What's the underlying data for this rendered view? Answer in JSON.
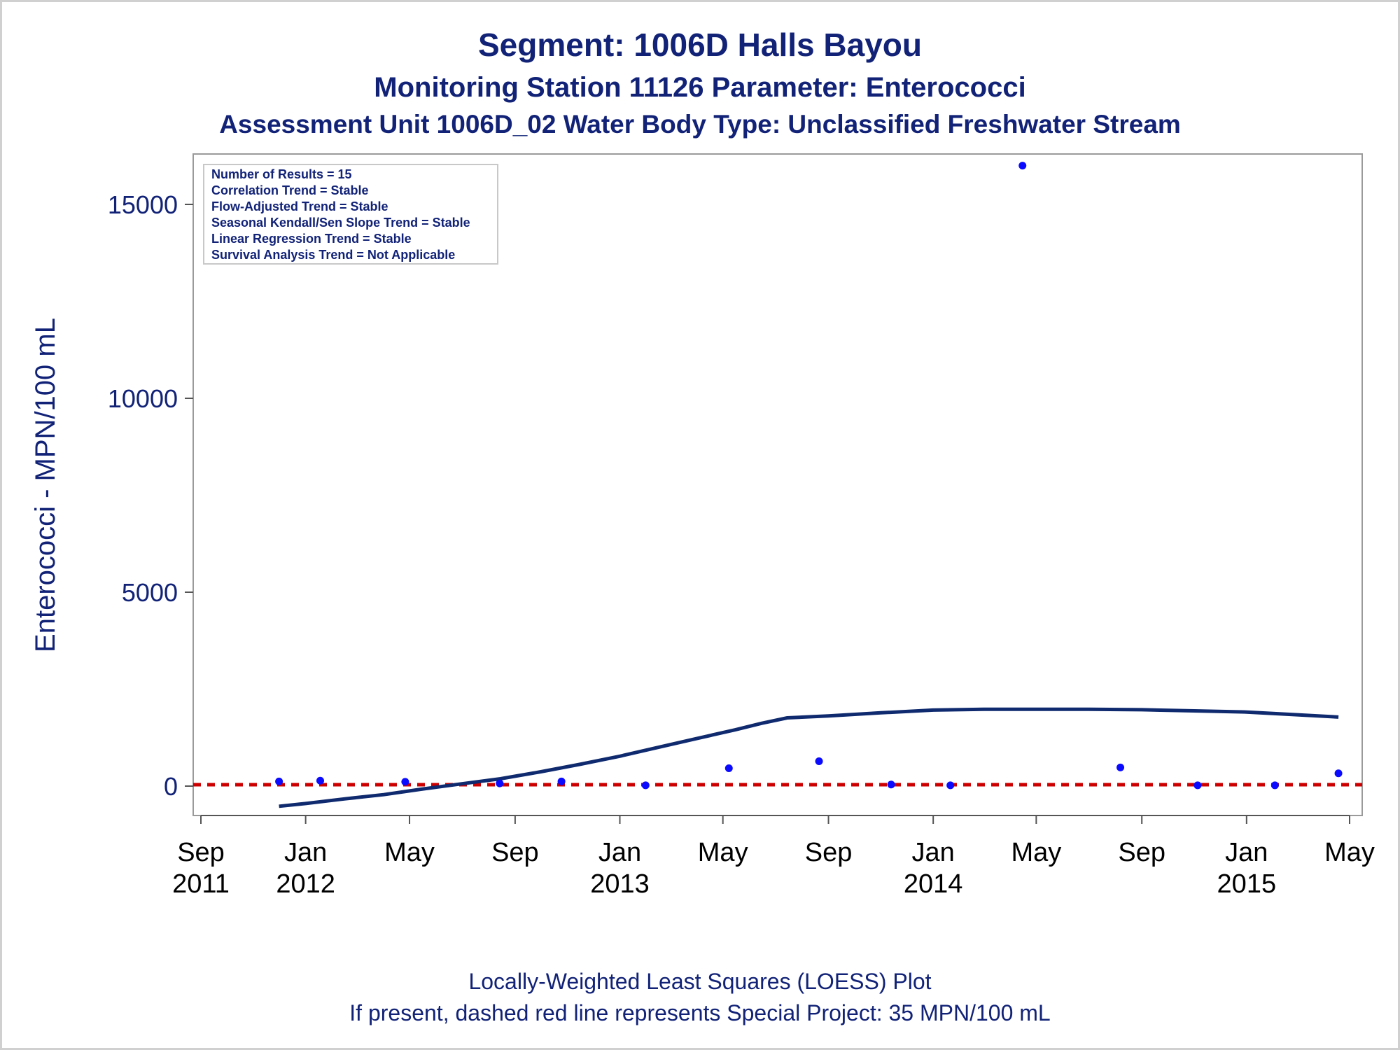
{
  "header": {
    "title": "Segment: 1006D  Halls Bayou",
    "subtitle1": "Monitoring Station 11126 Parameter: Enterococci",
    "subtitle2": "Assessment Unit 1006D_02   Water Body Type: Unclassified Freshwater Stream"
  },
  "legend": {
    "lines": [
      "Number of Results = 15",
      "Correlation Trend = Stable",
      "Flow-Adjusted Trend = Stable",
      "Seasonal Kendall/Sen Slope Trend = Stable",
      "Linear Regression Trend = Stable",
      "Survival Analysis Trend = Not Applicable"
    ]
  },
  "footer": {
    "line1": "Locally-Weighted Least Squares (LOESS) Plot",
    "line2": "If present, dashed red line represents Special Project: 35 MPN/100 mL"
  },
  "colors": {
    "points": "#0a0aff",
    "loess": "#0f2a6e",
    "reference": "#cc0000",
    "text": "#112277"
  },
  "chart_data": {
    "type": "scatter",
    "ylabel": "Enterococci - MPN/100 mL",
    "xlabel": "",
    "ylim": [
      -1000,
      16300
    ],
    "xlim": [
      "2011-09-01",
      "2015-05-01"
    ],
    "yticks": [
      0,
      5000,
      10000,
      15000
    ],
    "xticks": [
      {
        "date": "2011-09-01",
        "label": [
          "Sep",
          "2011"
        ]
      },
      {
        "date": "2012-01-01",
        "label": [
          "Jan",
          "2012"
        ]
      },
      {
        "date": "2012-05-01",
        "label": [
          "May",
          ""
        ]
      },
      {
        "date": "2012-09-01",
        "label": [
          "Sep",
          ""
        ]
      },
      {
        "date": "2013-01-01",
        "label": [
          "Jan",
          "2013"
        ]
      },
      {
        "date": "2013-05-01",
        "label": [
          "May",
          ""
        ]
      },
      {
        "date": "2013-09-01",
        "label": [
          "Sep",
          ""
        ]
      },
      {
        "date": "2014-01-01",
        "label": [
          "Jan",
          "2014"
        ]
      },
      {
        "date": "2014-05-01",
        "label": [
          "May",
          ""
        ]
      },
      {
        "date": "2014-09-01",
        "label": [
          "Sep",
          ""
        ]
      },
      {
        "date": "2015-01-01",
        "label": [
          "Jan",
          "2015"
        ]
      },
      {
        "date": "2015-05-01",
        "label": [
          "May",
          ""
        ]
      }
    ],
    "reference_line": {
      "name": "Special Project",
      "value": 35
    },
    "series": [
      {
        "kind": "points",
        "points": [
          {
            "x": "2011-12-01",
            "y": 120
          },
          {
            "x": "2012-01-18",
            "y": 140
          },
          {
            "x": "2012-04-26",
            "y": 110
          },
          {
            "x": "2012-08-14",
            "y": 70
          },
          {
            "x": "2012-10-25",
            "y": 120
          },
          {
            "x": "2013-01-31",
            "y": 20
          },
          {
            "x": "2013-05-08",
            "y": 460
          },
          {
            "x": "2013-08-21",
            "y": 640
          },
          {
            "x": "2013-11-13",
            "y": 40
          },
          {
            "x": "2014-01-21",
            "y": 20
          },
          {
            "x": "2014-04-15",
            "y": 16000
          },
          {
            "x": "2014-08-07",
            "y": 480
          },
          {
            "x": "2014-11-05",
            "y": 20
          },
          {
            "x": "2015-02-03",
            "y": 20
          },
          {
            "x": "2015-04-18",
            "y": 330
          }
        ]
      },
      {
        "kind": "loess",
        "points": [
          {
            "x": "2011-12-01",
            "y": -520
          },
          {
            "x": "2012-01-01",
            "y": -450
          },
          {
            "x": "2012-02-15",
            "y": -330
          },
          {
            "x": "2012-04-01",
            "y": -220
          },
          {
            "x": "2012-05-15",
            "y": -80
          },
          {
            "x": "2012-07-01",
            "y": 60
          },
          {
            "x": "2012-08-15",
            "y": 190
          },
          {
            "x": "2012-10-01",
            "y": 370
          },
          {
            "x": "2012-11-15",
            "y": 560
          },
          {
            "x": "2013-01-01",
            "y": 770
          },
          {
            "x": "2013-02-15",
            "y": 1000
          },
          {
            "x": "2013-04-01",
            "y": 1230
          },
          {
            "x": "2013-05-15",
            "y": 1450
          },
          {
            "x": "2013-06-15",
            "y": 1620
          },
          {
            "x": "2013-07-15",
            "y": 1760
          },
          {
            "x": "2013-09-01",
            "y": 1810
          },
          {
            "x": "2013-11-01",
            "y": 1890
          },
          {
            "x": "2014-01-01",
            "y": 1960
          },
          {
            "x": "2014-03-01",
            "y": 1980
          },
          {
            "x": "2014-05-01",
            "y": 1980
          },
          {
            "x": "2014-07-01",
            "y": 1980
          },
          {
            "x": "2014-09-01",
            "y": 1970
          },
          {
            "x": "2014-11-01",
            "y": 1940
          },
          {
            "x": "2015-01-01",
            "y": 1910
          },
          {
            "x": "2015-03-01",
            "y": 1840
          },
          {
            "x": "2015-04-18",
            "y": 1780
          }
        ]
      }
    ]
  }
}
